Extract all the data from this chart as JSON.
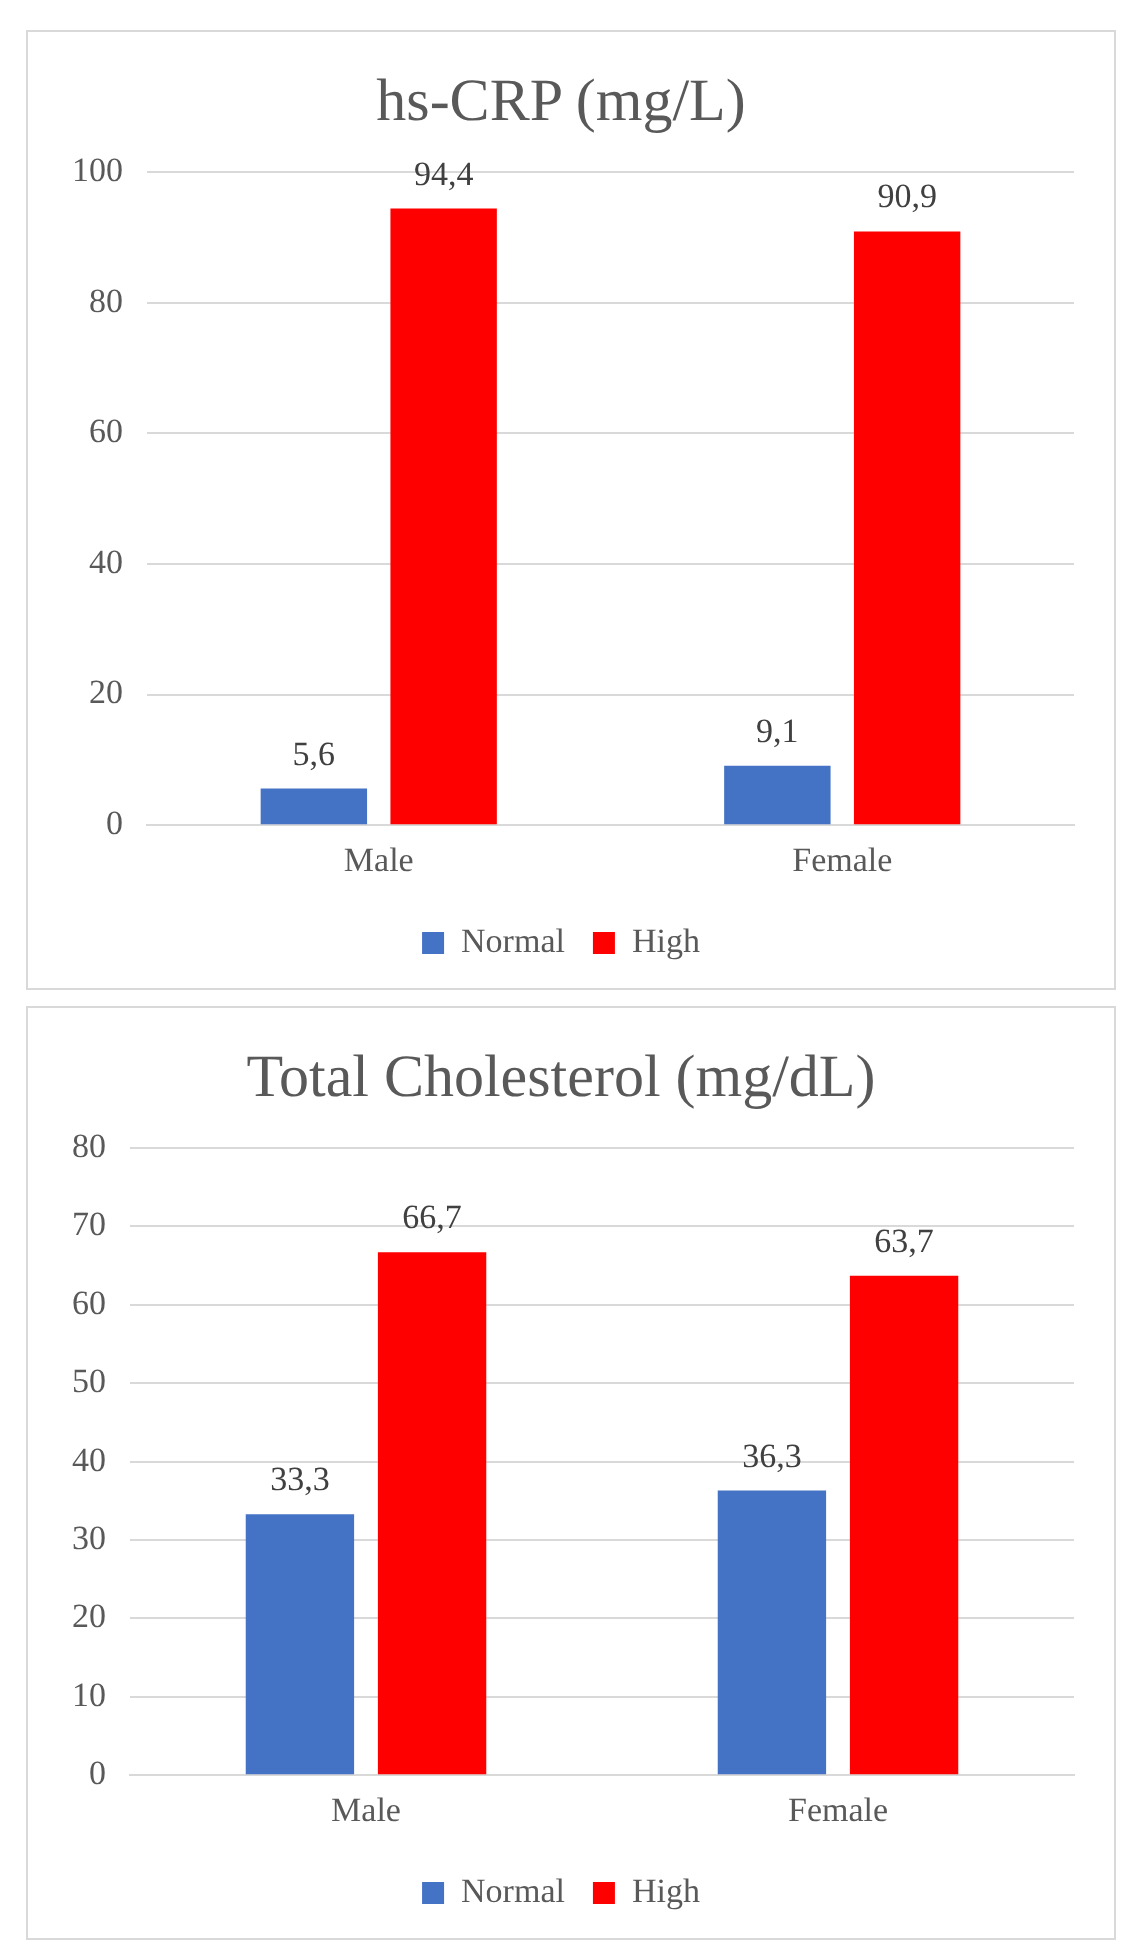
{
  "chart_data": [
    {
      "type": "bar",
      "title": "hs-CRP (mg/L)",
      "categories": [
        "Male",
        "Female"
      ],
      "series": [
        {
          "name": "Normal",
          "color": "#4472c4",
          "values": [
            5.6,
            9.1
          ],
          "value_labels": [
            "5,6",
            "9,1"
          ]
        },
        {
          "name": "High",
          "color": "#ff0000",
          "values": [
            94.4,
            90.9
          ],
          "value_labels": [
            "94,4",
            "90,9"
          ]
        }
      ],
      "ylim": [
        0,
        100
      ],
      "yticks": [
        0,
        20,
        40,
        60,
        80,
        100
      ],
      "grid": "y",
      "legend": "bottom"
    },
    {
      "type": "bar",
      "title": "Total Cholesterol (mg/dL)",
      "categories": [
        "Male",
        "Female"
      ],
      "series": [
        {
          "name": "Normal",
          "color": "#4472c4",
          "values": [
            33.3,
            36.3
          ],
          "value_labels": [
            "33,3",
            "36,3"
          ]
        },
        {
          "name": "High",
          "color": "#ff0000",
          "values": [
            66.7,
            63.7
          ],
          "value_labels": [
            "66,7",
            "63,7"
          ]
        }
      ],
      "ylim": [
        0,
        80
      ],
      "yticks": [
        0,
        10,
        20,
        30,
        40,
        50,
        60,
        70,
        80
      ],
      "grid": "y",
      "legend": "bottom"
    }
  ]
}
